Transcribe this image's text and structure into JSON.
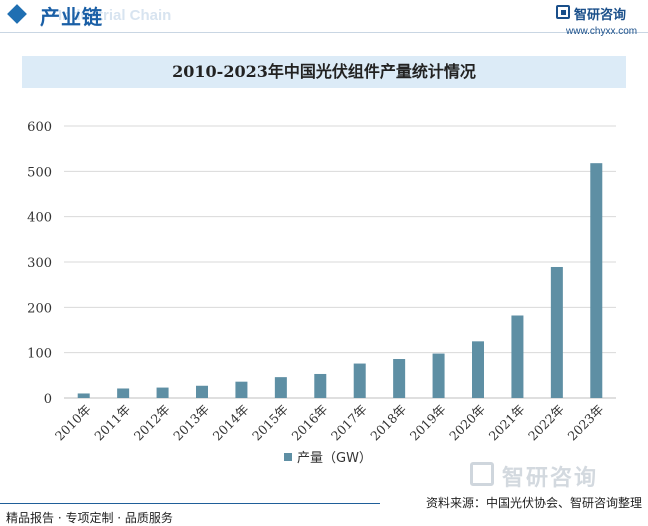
{
  "header": {
    "title": "产业链",
    "subtitle": "Industrial Chain"
  },
  "brand": {
    "name": "智研咨询",
    "url": "www.chyxx.com"
  },
  "watermark": {
    "name": "智研咨询"
  },
  "footer": {
    "left_text": "精品报告 · 专项定制 · 品质服务",
    "source": "资料来源：中国光伏协会、智研咨询整理"
  },
  "colors": {
    "bar": "#5e8fa4",
    "accent": "#1f6fb2",
    "title_bg": "#dcebf7",
    "grid": "#d9d9d9"
  },
  "chart_data": {
    "type": "bar",
    "title": "2010-2023年中国光伏组件产量统计情况",
    "categories": [
      "2010年",
      "2011年",
      "2012年",
      "2013年",
      "2014年",
      "2015年",
      "2016年",
      "2017年",
      "2018年",
      "2019年",
      "2020年",
      "2021年",
      "2022年",
      "2023年"
    ],
    "series": [
      {
        "name": "产量（GW）",
        "values": [
          10,
          21,
          23,
          27,
          36,
          46,
          53,
          76,
          86,
          98,
          125,
          182,
          289,
          518
        ]
      }
    ],
    "yticks": [
      0,
      100,
      200,
      300,
      400,
      500,
      600
    ],
    "ylim": [
      0,
      600
    ],
    "grid": true,
    "legend_position": "bottom-center"
  }
}
